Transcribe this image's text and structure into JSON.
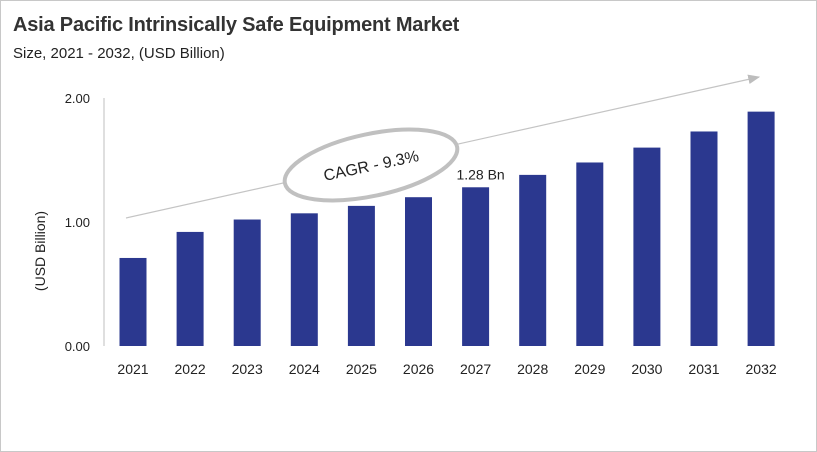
{
  "chart_data": {
    "type": "bar",
    "title": "Asia Pacific Intrinsically Safe Equipment Market",
    "subtitle": "Size, 2021 - 2032, (USD Billion)",
    "xlabel": "",
    "ylabel": "(USD Billion)",
    "ylim": [
      0,
      2
    ],
    "yticks": [
      "0.00",
      "1.00",
      "2.00"
    ],
    "categories": [
      "2021",
      "2022",
      "2023",
      "2024",
      "2025",
      "2026",
      "2027",
      "2028",
      "2029",
      "2030",
      "2031",
      "2032"
    ],
    "values": [
      0.71,
      0.92,
      1.02,
      1.07,
      1.13,
      1.2,
      1.28,
      1.38,
      1.48,
      1.6,
      1.73,
      1.89
    ],
    "bar_color": "#2b388f",
    "grid": false,
    "annotations": {
      "data_label": {
        "category": "2027",
        "text": "1.28 Bn"
      },
      "cagr": "CAGR - 9.3%"
    }
  }
}
